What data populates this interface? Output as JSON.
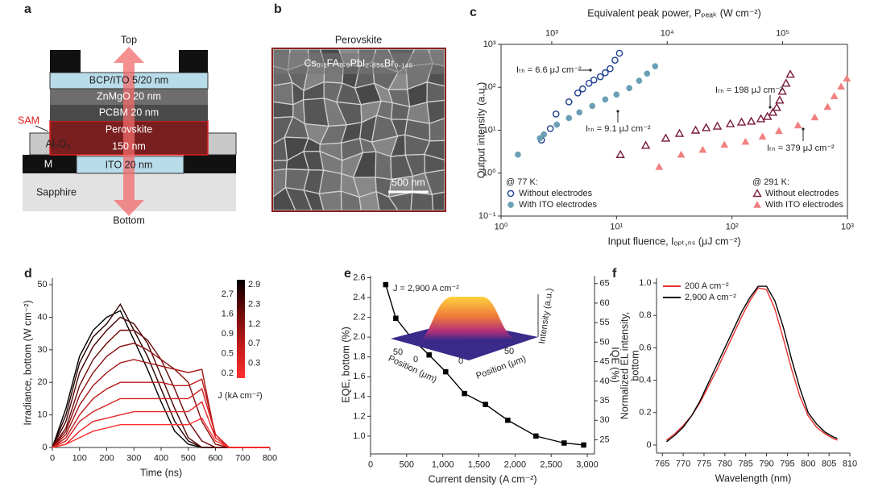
{
  "panel_a": {
    "label": "a",
    "top": "Top",
    "bottom": "Bottom",
    "sam": "SAM",
    "layers": {
      "bcp": "BCP/ITO 5/20 nm",
      "znmgo": "ZnMgO 20 nm",
      "pcbm": "PCBM 20 nm",
      "perovskite": [
        "Perovskite",
        "150 nm"
      ],
      "al2o3": "Al₂O₃",
      "m": "M",
      "ito": "ITO 20 nm",
      "sapphire": "Sapphire"
    }
  },
  "panel_b": {
    "label": "b",
    "title": "Perovskite",
    "composition": "Cs₀.₁FA₀.₉PbI₂.₈₅₅Br₀.₁₄₅",
    "scale_bar": "500 nm"
  },
  "chart_data": [
    {
      "label": "c",
      "type": "scatter",
      "xlabel": "Input fluence, Iₒₚₜ,ₙₛ (μJ cm⁻²)",
      "ylabel": "Output intensity (a.u.)",
      "x2label": "Equivalent peak power, Pₚₑₐₖ (W cm⁻²)",
      "xscale": "log",
      "yscale": "log",
      "xlim": [
        1,
        1000
      ],
      "ylim": [
        0.1,
        1000
      ],
      "x2lim": [
        364,
        364000
      ],
      "xticks": [
        {
          "value": 1,
          "label": "10⁰"
        },
        {
          "value": 10,
          "label": "10¹"
        },
        {
          "value": 100,
          "label": "10²"
        },
        {
          "value": 1000,
          "label": "10³"
        }
      ],
      "yticks": [
        {
          "value": 0.1,
          "label": "10⁻¹"
        },
        {
          "value": 1,
          "label": "10⁰"
        },
        {
          "value": 10,
          "label": "10¹"
        },
        {
          "value": 100,
          "label": "10²"
        },
        {
          "value": 1000,
          "label": "10³"
        }
      ],
      "x2ticks": [
        {
          "value": 1000,
          "label": "10³"
        },
        {
          "value": 10000,
          "label": "10⁴"
        },
        {
          "value": 100000,
          "label": "10⁵"
        }
      ],
      "annotations": [
        "Iₜₕ = 6.6 μJ cm⁻²",
        "Iₜₕ = 9.1 μJ cm⁻²",
        "Iₜₕ = 198 μJ cm⁻²",
        "Iₜₕ = 379 μJ cm⁻²"
      ],
      "groups": [
        {
          "title": "@ 77 K:",
          "legend": "lower left",
          "series": [
            {
              "name": "Without electrodes",
              "color": "#1f3f8f",
              "marker": "circle",
              "filled": false,
              "x": [
                2.24,
                2.67,
                2.99,
                3.87,
                4.62,
                5.09,
                5.77,
                6.37,
                7.24,
                7.99,
                8.8,
                9.7,
                10.6
              ],
              "values": [
                5.9,
                10.9,
                23.8,
                45.7,
                73.7,
                91.8,
                124,
                148,
                176,
                218,
                271,
                426,
                620
              ]
            },
            {
              "name": "With ITO electrodes",
              "color": "#6a9fb5",
              "marker": "circle",
              "filled": true,
              "x": [
                1.4,
                2.17,
                2.35,
                3.04,
                3.87,
                4.77,
                6.17,
                7.99,
                10.0,
                12.9,
                15.7,
                18.4,
                21.6
              ],
              "values": [
                2.7,
                6.5,
                8.0,
                13.5,
                19.2,
                26,
                36.7,
                52,
                67.7,
                95.6,
                142,
                208,
                309
              ]
            }
          ]
        },
        {
          "title": "@ 291 K:",
          "legend": "lower right",
          "series": [
            {
              "name": "Without electrodes",
              "color": "#7a1a3a",
              "marker": "triangle",
              "filled": false,
              "x": [
                10.8,
                17.9,
                26.7,
                35.1,
                48.4,
                59.8,
                74.7,
                96.8,
                121,
                147,
                178,
                203,
                226,
                244,
                259,
                273,
                294,
                320
              ],
              "values": [
                2.7,
                4.4,
                6.5,
                8.4,
                10,
                11.4,
                12.4,
                14.1,
                15.4,
                16.1,
                18.4,
                20.8,
                26,
                33.7,
                50,
                80.4,
                124,
                200
              ]
            },
            {
              "name": "With ITO electrodes",
              "color": "#f08080",
              "marker": "triangle",
              "filled": true,
              "x": [
                23.4,
                36.3,
                55.8,
                86,
                131,
                184,
                255,
                373,
                521,
                673,
                769,
                881,
                988
              ],
              "values": [
                1.4,
                2.7,
                3.5,
                4.6,
                5.4,
                7.1,
                9.6,
                13,
                20,
                35,
                62,
                104,
                160
              ]
            }
          ]
        }
      ]
    },
    {
      "label": "d",
      "type": "line",
      "xlabel": "Time (ns)",
      "ylabel": "Irradiance, bottom (W cm⁻²)",
      "x": [
        0,
        50,
        100,
        150,
        200,
        250,
        300,
        350,
        400,
        450,
        500,
        550,
        600,
        650,
        700,
        750,
        800
      ],
      "xlim": [
        0,
        800
      ],
      "ylim": [
        0,
        52
      ],
      "xticks": [
        0,
        100,
        200,
        300,
        400,
        500,
        600,
        700,
        800
      ],
      "yticks": [
        0,
        10,
        20,
        30,
        40,
        50
      ],
      "colorbar": {
        "title": "J (kA cm⁻²)",
        "ticks": [
          2.9,
          2.7,
          2.3,
          1.6,
          1.2,
          0.9,
          0.7,
          0.5,
          0.3,
          0.2
        ]
      },
      "series": [
        {
          "color": "#000000",
          "values": [
            0,
            12,
            28,
            36,
            40,
            42,
            33,
            24,
            14,
            5,
            1,
            0,
            0,
            0,
            0,
            0,
            0
          ]
        },
        {
          "color": "#2a0000",
          "values": [
            0,
            10,
            26,
            34,
            38,
            44,
            36,
            28,
            18,
            8,
            2,
            0,
            0,
            0,
            0,
            0,
            0
          ]
        },
        {
          "color": "#4a0505",
          "values": [
            0,
            8,
            23,
            31,
            36,
            40,
            38,
            32,
            22,
            12,
            3,
            0,
            0,
            0,
            0,
            0,
            0
          ]
        },
        {
          "color": "#6b0a0a",
          "values": [
            0,
            6,
            19,
            27,
            32,
            36,
            36,
            33,
            27,
            18,
            8,
            2,
            0,
            0,
            0,
            0,
            0
          ]
        },
        {
          "color": "#8a1010",
          "values": [
            0,
            5,
            16,
            23,
            28,
            31,
            32,
            30,
            27,
            24,
            20,
            8,
            1,
            0,
            0,
            0,
            0
          ]
        },
        {
          "color": "#a51515",
          "values": [
            0,
            4,
            13,
            19,
            23,
            26,
            27,
            26,
            25,
            24,
            23,
            24,
            3,
            0,
            0,
            0,
            0
          ]
        },
        {
          "color": "#bf1a1a",
          "values": [
            0,
            3,
            10,
            15,
            18,
            20,
            20,
            20,
            20,
            19,
            19,
            21,
            4,
            0,
            0,
            0,
            0
          ]
        },
        {
          "color": "#d42020",
          "values": [
            0,
            2,
            8,
            11,
            13,
            15,
            15,
            15,
            15,
            15,
            15,
            18,
            4,
            0,
            0,
            0,
            0
          ]
        },
        {
          "color": "#e82828",
          "values": [
            0,
            1,
            5,
            8,
            9,
            10,
            11,
            11,
            11,
            11,
            11,
            14,
            3,
            0,
            0,
            0,
            0
          ]
        },
        {
          "color": "#ff3030",
          "values": [
            0,
            1,
            3,
            5,
            6,
            7,
            7,
            7,
            7,
            7,
            7,
            9,
            2,
            0,
            0,
            0,
            0
          ]
        }
      ]
    },
    {
      "label": "e",
      "type": "line",
      "xlabel": "Current density (A cm⁻²)",
      "ylabel": "EQE, bottom (%)",
      "y2label": "IQE (%)",
      "x": [
        210,
        350,
        580,
        810,
        1040,
        1300,
        1590,
        1900,
        2290,
        2680,
        2950
      ],
      "xlim": [
        0,
        3100
      ],
      "ylim": [
        0.82,
        2.62
      ],
      "y2lim": [
        21.4,
        67
      ],
      "xticks": [
        0,
        500,
        {
          "value": 1000,
          "label": "1,000"
        },
        {
          "value": 1500,
          "label": "1,500"
        },
        {
          "value": 2000,
          "label": "2,000"
        },
        {
          "value": 2500,
          "label": "2,500"
        },
        {
          "value": 3000,
          "label": "3,000"
        }
      ],
      "yticks": [
        {
          "value": 1,
          "label": "1.0"
        },
        1.2,
        1.4,
        1.6,
        1.8,
        {
          "value": 2,
          "label": "2.0"
        },
        2.2,
        2.4,
        2.6
      ],
      "y2ticks": [
        25,
        30,
        35,
        40,
        45,
        50,
        55,
        60,
        65
      ],
      "series": [
        {
          "color": "#000000",
          "marker": "square",
          "values": [
            2.53,
            2.19,
            1.98,
            1.82,
            1.65,
            1.43,
            1.32,
            1.16,
            1.0,
            0.93,
            0.91
          ]
        }
      ],
      "inset": {
        "title": "J = 2,900 A cm⁻²",
        "xlabel": "Position (μm)",
        "ylabel": "Position (μm)",
        "zlabel": "Intensity (a.u.)",
        "xticks": [
          50,
          0
        ],
        "yticks": [
          0,
          50
        ]
      }
    },
    {
      "label": "f",
      "type": "line",
      "xlabel": "Wavelength (nm)",
      "ylabel": [
        "Normalized EL intensity,",
        "bottom"
      ],
      "legend": "upper left",
      "x": [
        766,
        768,
        770,
        772,
        774,
        776,
        778,
        780,
        782,
        784,
        786,
        788,
        790,
        792,
        794,
        796,
        798,
        800,
        802,
        804,
        806,
        807
      ],
      "xlim": [
        763.6,
        810
      ],
      "ylim": [
        -0.05,
        1.03
      ],
      "xticks": [
        765,
        770,
        775,
        780,
        785,
        790,
        795,
        800,
        805,
        810
      ],
      "yticks": [
        0,
        0.2,
        0.4,
        0.6,
        0.8,
        {
          "value": 1,
          "label": "1.0"
        }
      ],
      "series": [
        {
          "name": "200 A cm⁻²",
          "color": "#e8312f",
          "values": [
            0.03,
            0.07,
            0.12,
            0.18,
            0.26,
            0.36,
            0.46,
            0.57,
            0.68,
            0.79,
            0.89,
            0.97,
            0.96,
            0.84,
            0.66,
            0.47,
            0.3,
            0.18,
            0.11,
            0.07,
            0.04,
            0.03
          ]
        },
        {
          "name": "2,900 A cm⁻²",
          "color": "#000000",
          "values": [
            0.02,
            0.06,
            0.11,
            0.18,
            0.27,
            0.38,
            0.49,
            0.6,
            0.71,
            0.82,
            0.91,
            0.98,
            0.98,
            0.89,
            0.73,
            0.53,
            0.35,
            0.2,
            0.13,
            0.08,
            0.05,
            0.04
          ]
        }
      ]
    }
  ]
}
